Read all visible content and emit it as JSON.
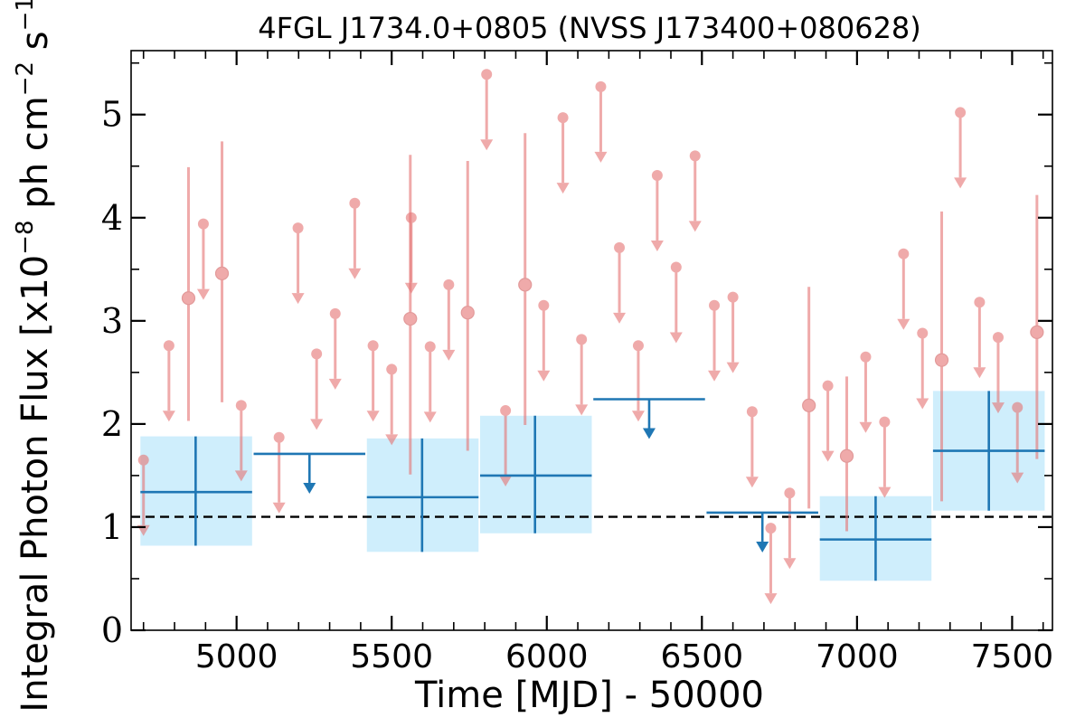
{
  "chart_data": {
    "type": "scatter",
    "title": "4FGL J1734.0+0805 (NVSS J173400+080628)",
    "xlabel": "Time [MJD] - 50000",
    "ylabel": "Integral Photon Flux [x10",
    "ylabel_exponent": "−8",
    "ylabel_mid": " ph cm",
    "ylabel_exponent2": "−2",
    "ylabel_end": " s",
    "ylabel_exponent3": "−1",
    "ylabel_close": "]",
    "xlim": [
      4660,
      7630
    ],
    "ylim": [
      0,
      5.62
    ],
    "x_ticks": [
      5000,
      5500,
      6000,
      6500,
      7000,
      7500
    ],
    "x_tick_labels": [
      "5000",
      "5500",
      "6000",
      "6500",
      "7000",
      "7500"
    ],
    "y_ticks": [
      0,
      1,
      2,
      3,
      4,
      5
    ],
    "y_tick_labels": [
      "0",
      "1",
      "2",
      "3",
      "4",
      "5"
    ],
    "grid": false,
    "colors": {
      "short_bin_color": "#e57373",
      "long_bin_color": "#1f77b4",
      "band_fill": "#cfeefc",
      "reference_line": "#000000"
    },
    "reference_line_y": 1.1,
    "short_bins": {
      "bin_halfwidth": 15,
      "detections": [
        {
          "x": 4845,
          "y": 3.22,
          "lo": 2.03,
          "hi": 4.49
        },
        {
          "x": 4953,
          "y": 3.46,
          "lo": 2.21,
          "hi": 4.74
        },
        {
          "x": 5560,
          "y": 3.02,
          "lo": 1.51,
          "hi": 4.61
        },
        {
          "x": 5745,
          "y": 3.08,
          "lo": 1.74,
          "hi": 4.55
        },
        {
          "x": 5930,
          "y": 3.35,
          "lo": 1.99,
          "hi": 4.82
        },
        {
          "x": 6845,
          "y": 2.18,
          "lo": 1.18,
          "hi": 3.33
        },
        {
          "x": 6967,
          "y": 1.69,
          "lo": 0.96,
          "hi": 2.46
        },
        {
          "x": 7273,
          "y": 2.62,
          "lo": 1.25,
          "hi": 4.06
        },
        {
          "x": 7580,
          "y": 2.89,
          "lo": 1.66,
          "hi": 4.22
        }
      ],
      "upper_limits": [
        {
          "x": 4700,
          "y": 1.65
        },
        {
          "x": 4782,
          "y": 2.76
        },
        {
          "x": 4893,
          "y": 3.94
        },
        {
          "x": 5015,
          "y": 2.18
        },
        {
          "x": 5137,
          "y": 1.87
        },
        {
          "x": 5198,
          "y": 3.9
        },
        {
          "x": 5258,
          "y": 2.68
        },
        {
          "x": 5318,
          "y": 3.07
        },
        {
          "x": 5381,
          "y": 4.14
        },
        {
          "x": 5440,
          "y": 2.76
        },
        {
          "x": 5500,
          "y": 2.53
        },
        {
          "x": 5563,
          "y": 4.0
        },
        {
          "x": 5624,
          "y": 2.75
        },
        {
          "x": 5684,
          "y": 3.35
        },
        {
          "x": 5806,
          "y": 5.39
        },
        {
          "x": 5867,
          "y": 2.13
        },
        {
          "x": 5990,
          "y": 3.15
        },
        {
          "x": 6052,
          "y": 4.97
        },
        {
          "x": 6112,
          "y": 2.82
        },
        {
          "x": 6174,
          "y": 5.27
        },
        {
          "x": 6234,
          "y": 3.71
        },
        {
          "x": 6295,
          "y": 2.76
        },
        {
          "x": 6356,
          "y": 4.41
        },
        {
          "x": 6417,
          "y": 3.52
        },
        {
          "x": 6478,
          "y": 4.6
        },
        {
          "x": 6540,
          "y": 3.15
        },
        {
          "x": 6600,
          "y": 3.23
        },
        {
          "x": 6662,
          "y": 2.12
        },
        {
          "x": 6722,
          "y": 0.99
        },
        {
          "x": 6783,
          "y": 1.33
        },
        {
          "x": 6906,
          "y": 2.37
        },
        {
          "x": 7028,
          "y": 2.65
        },
        {
          "x": 7089,
          "y": 2.02
        },
        {
          "x": 7150,
          "y": 3.65
        },
        {
          "x": 7211,
          "y": 2.88
        },
        {
          "x": 7333,
          "y": 5.02
        },
        {
          "x": 7395,
          "y": 3.18
        },
        {
          "x": 7455,
          "y": 2.84
        },
        {
          "x": 7517,
          "y": 2.16
        }
      ]
    },
    "long_bins": {
      "detections": [
        {
          "x0": 4690,
          "x1": 5050,
          "xc": 4868,
          "y": 1.34,
          "lo": 0.82,
          "hi": 1.88
        },
        {
          "x0": 5420,
          "x1": 5780,
          "xc": 5598,
          "y": 1.29,
          "lo": 0.76,
          "hi": 1.86
        },
        {
          "x0": 5785,
          "x1": 6145,
          "xc": 5962,
          "y": 1.5,
          "lo": 0.94,
          "hi": 2.08
        },
        {
          "x0": 6880,
          "x1": 7240,
          "xc": 7060,
          "y": 0.88,
          "lo": 0.48,
          "hi": 1.3
        },
        {
          "x0": 7245,
          "x1": 7605,
          "xc": 7425,
          "y": 1.74,
          "lo": 1.16,
          "hi": 2.32
        }
      ],
      "upper_limits": [
        {
          "x0": 5055,
          "x1": 5415,
          "xc": 5235,
          "y": 1.71
        },
        {
          "x0": 6150,
          "x1": 6510,
          "xc": 6330,
          "y": 2.24
        },
        {
          "x0": 6515,
          "x1": 6875,
          "xc": 6695,
          "y": 1.14
        }
      ]
    }
  }
}
